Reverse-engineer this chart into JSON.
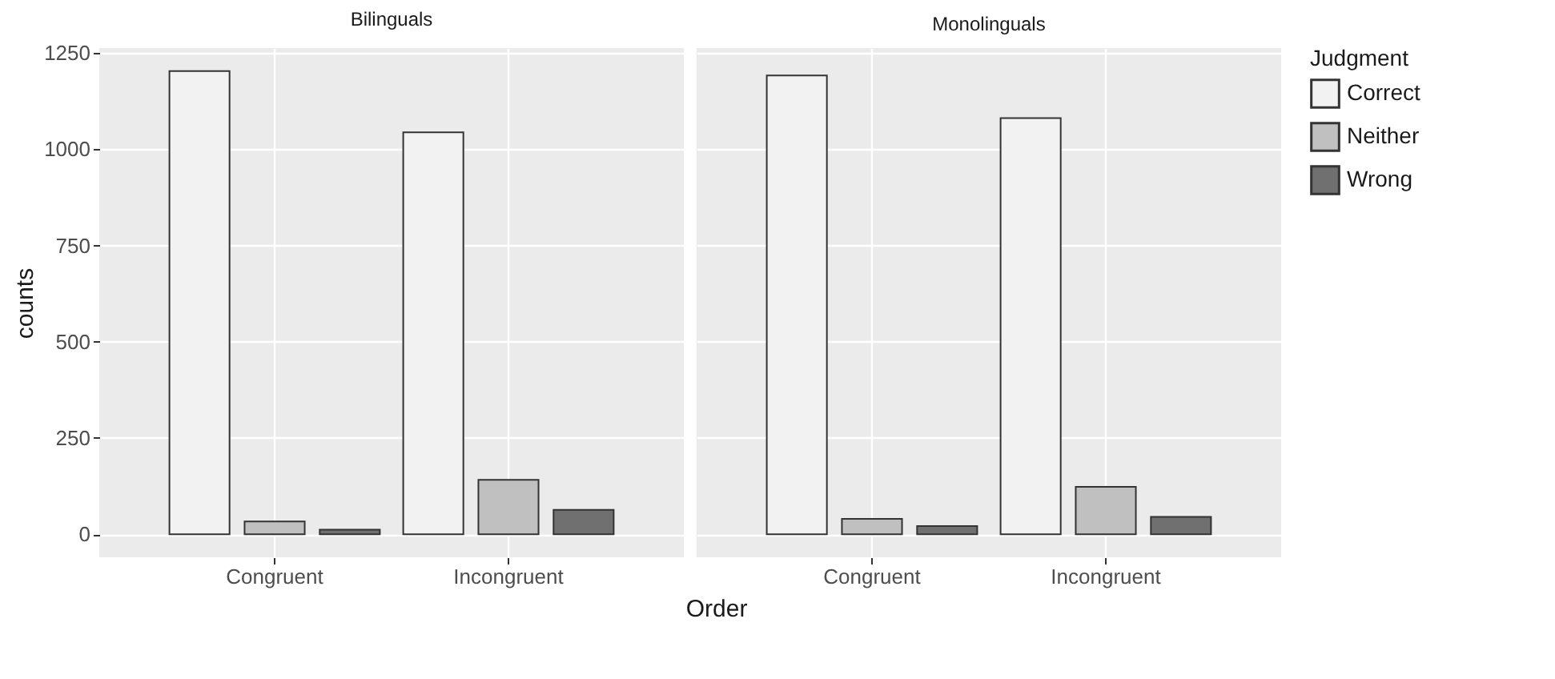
{
  "chart_data": [
    {
      "type": "bar",
      "title": "Bilinguals",
      "xlabel": "Order",
      "ylabel": "counts",
      "categories": [
        "Congruent",
        "Incongruent"
      ],
      "ylim": [
        -60,
        1263
      ],
      "yticks": [
        0,
        250,
        500,
        750,
        1000,
        1250
      ],
      "grid": true,
      "legend": "right",
      "series": [
        {
          "name": "Correct",
          "color": "#f2f2f2",
          "values": [
            1203,
            1044
          ]
        },
        {
          "name": "Neither",
          "color": "#c0c0c0",
          "values": [
            33,
            141
          ]
        },
        {
          "name": "Wrong",
          "color": "#707070",
          "values": [
            12,
            63
          ]
        }
      ]
    },
    {
      "type": "bar",
      "title": "Monolinguals",
      "legend_title": "Judgment",
      "categories": [
        "Congruent",
        "Incongruent"
      ],
      "ylim": [
        -60,
        1263
      ],
      "yticks": [
        0,
        250,
        500,
        750,
        1000,
        1250
      ],
      "grid": true,
      "legend": "right",
      "tick_labels": "x",
      "series": [
        {
          "name": "Correct",
          "color": "#f2f2f2",
          "values": [
            1192,
            1081
          ]
        },
        {
          "name": "Neither",
          "color": "#c0c0c0",
          "values": [
            40,
            123
          ]
        },
        {
          "name": "Wrong",
          "color": "#707070",
          "values": [
            21,
            45
          ]
        }
      ]
    }
  ]
}
